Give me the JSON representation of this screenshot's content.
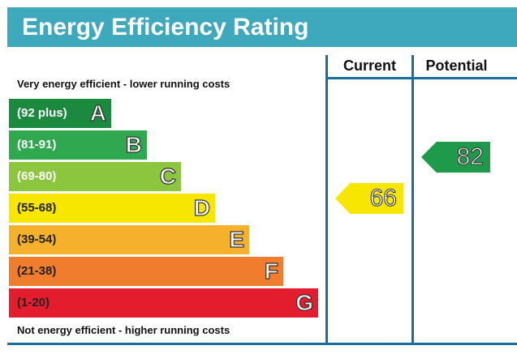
{
  "title": "Energy Efficiency Rating",
  "headers": {
    "current": "Current",
    "potential": "Potential"
  },
  "top_caption": "Very energy efficient - lower running costs",
  "bottom_caption": "Not energy efficient - higher running costs",
  "bands": [
    {
      "range": "(92 plus)",
      "letter": "A",
      "color": "#1b8a3f"
    },
    {
      "range": "(81-91)",
      "letter": "B",
      "color": "#2fa84f"
    },
    {
      "range": "(69-80)",
      "letter": "C",
      "color": "#8cc63f"
    },
    {
      "range": "(55-68)",
      "letter": "D",
      "color": "#f7e600"
    },
    {
      "range": "(39-54)",
      "letter": "E",
      "color": "#f5b12c"
    },
    {
      "range": "(21-38)",
      "letter": "F",
      "color": "#ef7d2d"
    },
    {
      "range": "(1-20)",
      "letter": "G",
      "color": "#e31d2e"
    }
  ],
  "current": {
    "value": "66",
    "band": "D",
    "color": "#f7e600"
  },
  "potential": {
    "value": "82",
    "band": "B",
    "color": "#1f9a4a"
  },
  "colors": {
    "title_bar": "#3ea8bd",
    "frame": "#1c6f9c"
  }
}
